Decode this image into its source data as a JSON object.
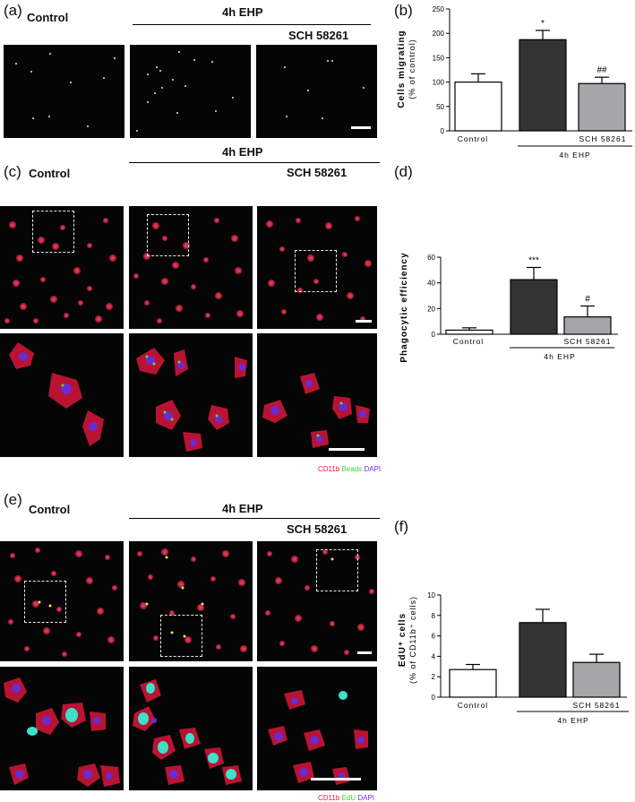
{
  "panels": {
    "a": "(a)",
    "b": "(b)",
    "c": "(c)",
    "d": "(d)",
    "e": "(e)",
    "f": "(f)"
  },
  "headers": {
    "control": "Control",
    "ehp": "4h EHP",
    "sch": "SCH 58261"
  },
  "legend_c": {
    "cd11b": "CD11b",
    "beads": "Beads",
    "dapi": "DAPI"
  },
  "legend_e": {
    "cd11b": "CD11b",
    "edu": "EdU",
    "dapi": "DAPI"
  },
  "colors": {
    "control_bar": "#ffffff",
    "ehp_bar": "#333333",
    "sch_bar": "#a6a6aa",
    "cd11b": "#e8183a",
    "beads": "#39d439",
    "dapi": "#7b2be0"
  },
  "chart_data": [
    {
      "panel": "b",
      "type": "bar",
      "categories": [
        "Control",
        "4h EHP",
        "SCH 58261"
      ],
      "values": [
        100,
        187,
        97
      ],
      "errors": [
        17,
        19,
        13
      ],
      "ylabel": "Cells migrating",
      "ylabel2": "(% of control)",
      "ylim": [
        0,
        250
      ],
      "yticks": [
        0,
        50,
        100,
        150,
        200,
        250
      ],
      "annotations": [
        "",
        "*",
        "##"
      ],
      "xlabels": {
        "control": "Control",
        "sch": "SCH 58261",
        "group": "4h EHP"
      }
    },
    {
      "panel": "d",
      "type": "bar",
      "categories": [
        "Control",
        "4h EHP",
        "SCH 58261"
      ],
      "values": [
        3.2,
        42.5,
        13.5
      ],
      "errors": [
        1.8,
        9.5,
        8.5
      ],
      "ylabel": "Phagocytic efficiency",
      "ylim": [
        0,
        60
      ],
      "yticks": [
        0,
        20,
        40,
        60
      ],
      "annotations": [
        "",
        "***",
        "#"
      ],
      "xlabels": {
        "control": "Control",
        "sch": "SCH 58261",
        "group": "4h EHP"
      }
    },
    {
      "panel": "f",
      "type": "bar",
      "categories": [
        "Control",
        "4h EHP",
        "SCH 58261"
      ],
      "values": [
        2.7,
        7.3,
        3.4
      ],
      "errors": [
        0.5,
        1.3,
        0.8
      ],
      "ylabel": "EdU⁺ cells",
      "ylabel2": "(% of CD11b⁺ cells)",
      "ylim": [
        0,
        10
      ],
      "yticks": [
        0,
        2,
        4,
        6,
        8,
        10
      ],
      "annotations": [
        "",
        "",
        ""
      ],
      "xlabels": {
        "control": "Control",
        "sch": "SCH 58261",
        "group": "4h EHP"
      }
    }
  ]
}
